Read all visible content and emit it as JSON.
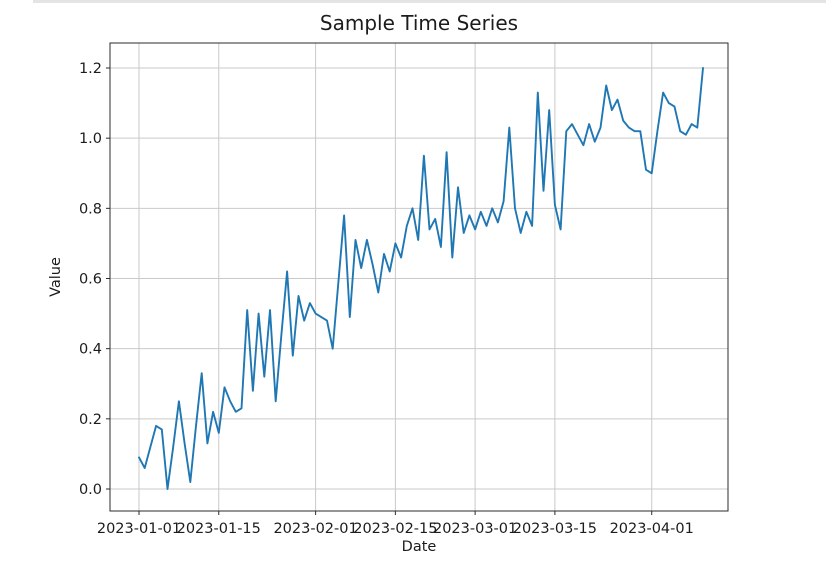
{
  "window": {
    "top_border_color": "#e4e4e4"
  },
  "chart_data": {
    "type": "line",
    "title": "Sample Time Series",
    "xlabel": "Date",
    "ylabel": "Value",
    "legend": "none",
    "grid": true,
    "grid_color": "#c9c9c9",
    "frame_color": "#2b2b2b",
    "series_name": "value",
    "series_color": "#1f77b4",
    "x_start_date": "2023-01-01",
    "x_frequency": "daily",
    "n_points": 100,
    "x_tick_labels": [
      "2023-01-01",
      "2023-01-15",
      "2023-02-01",
      "2023-02-15",
      "2023-03-01",
      "2023-03-15",
      "2023-04-01"
    ],
    "x_tick_day_indices": [
      0,
      14,
      31,
      45,
      59,
      73,
      90
    ],
    "y_tick_labels": [
      "0.0",
      "0.2",
      "0.4",
      "0.6",
      "0.8",
      "1.0",
      "1.2"
    ],
    "y_tick_values": [
      0.0,
      0.2,
      0.4,
      0.6,
      0.8,
      1.0,
      1.2
    ],
    "ylim": [
      -0.06,
      1.27
    ],
    "xlim_days": [
      -5,
      104
    ],
    "values": [
      0.09,
      0.06,
      0.12,
      0.18,
      0.17,
      0.0,
      0.12,
      0.25,
      0.13,
      0.02,
      0.18,
      0.33,
      0.13,
      0.22,
      0.16,
      0.29,
      0.25,
      0.22,
      0.23,
      0.51,
      0.28,
      0.5,
      0.32,
      0.51,
      0.25,
      0.44,
      0.62,
      0.38,
      0.55,
      0.48,
      0.53,
      0.5,
      0.49,
      0.48,
      0.4,
      0.59,
      0.78,
      0.49,
      0.71,
      0.63,
      0.71,
      0.64,
      0.56,
      0.67,
      0.62,
      0.7,
      0.66,
      0.75,
      0.8,
      0.71,
      0.95,
      0.74,
      0.77,
      0.69,
      0.96,
      0.66,
      0.86,
      0.73,
      0.78,
      0.74,
      0.79,
      0.75,
      0.8,
      0.76,
      0.82,
      1.03,
      0.8,
      0.73,
      0.79,
      0.75,
      1.13,
      0.85,
      1.08,
      0.81,
      0.74,
      1.02,
      1.04,
      1.01,
      0.98,
      1.04,
      0.99,
      1.03,
      1.15,
      1.08,
      1.11,
      1.05,
      1.03,
      1.02,
      1.02,
      0.91,
      0.9,
      1.02,
      1.13,
      1.1,
      1.09,
      1.02,
      1.01,
      1.04,
      1.03,
      1.2
    ]
  }
}
